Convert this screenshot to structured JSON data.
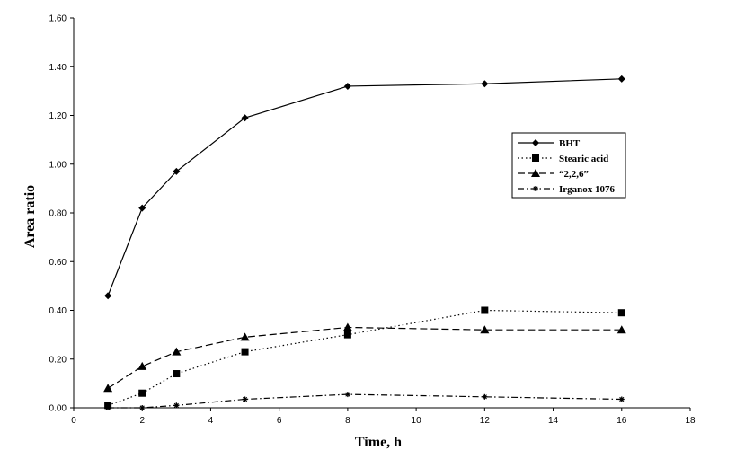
{
  "chart_data": {
    "type": "line",
    "xlabel": "Time, h",
    "ylabel": "Area ratio",
    "xlim": [
      0,
      18
    ],
    "ylim": [
      0,
      1.6
    ],
    "xticks": [
      "0",
      "2",
      "4",
      "6",
      "8",
      "10",
      "12",
      "14",
      "16",
      "18"
    ],
    "yticks": [
      "0.00",
      "0.20",
      "0.40",
      "0.60",
      "0.80",
      "1.00",
      "1.20",
      "1.40",
      "1.60"
    ],
    "grid": false,
    "legend_position": "right",
    "x": [
      1,
      2,
      3,
      5,
      8,
      12,
      16
    ],
    "series": [
      {
        "name": "BHT",
        "values": [
          0.46,
          0.82,
          0.97,
          1.19,
          1.32,
          1.33,
          1.35
        ],
        "marker": "diamond",
        "dash": "solid"
      },
      {
        "name": "Stearic acid",
        "values": [
          0.01,
          0.06,
          0.14,
          0.23,
          0.3,
          0.4,
          0.39
        ],
        "marker": "square",
        "dash": "dotted"
      },
      {
        "name": "“2,2,6”",
        "values": [
          0.08,
          0.17,
          0.23,
          0.29,
          0.33,
          0.32,
          0.32
        ],
        "marker": "triangle",
        "dash": "dashed"
      },
      {
        "name": "Irganox 1076",
        "values": [
          0.0,
          0.0,
          0.01,
          0.035,
          0.055,
          0.045,
          0.035
        ],
        "marker": "star",
        "dash": "dashdot"
      }
    ]
  }
}
